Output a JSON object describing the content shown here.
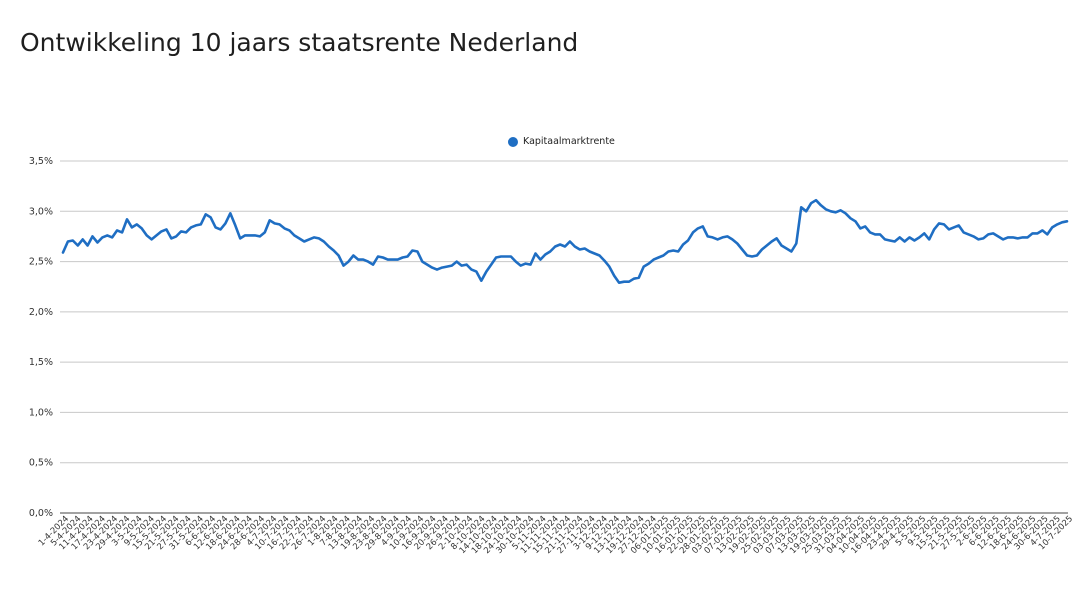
{
  "chart_data": {
    "type": "line",
    "title": "Ontwikkeling 10 jaars staatsrente Nederland",
    "xlabel": "",
    "ylabel": "",
    "ylim": [
      0,
      3.5
    ],
    "yticks": [
      "0,0%",
      "0,5%",
      "1,0%",
      "1,5%",
      "2,0%",
      "2,5%",
      "3,0%",
      "3,5%"
    ],
    "grid": true,
    "legend_position": "top-center",
    "line_color": "#1f6ec3",
    "x_tick_labels": [
      "1-4-2024",
      "5-4-2024",
      "11-4-2024",
      "17-4-2024",
      "23-4-2024",
      "29-4-2024",
      "3-5-2024",
      "9-5-2024",
      "15-5-2024",
      "21-5-2024",
      "27-5-2024",
      "31-5-2024",
      "6-6-2024",
      "12-6-2024",
      "18-6-2024",
      "24-6-2024",
      "28-6-2024",
      "4-7-2024",
      "10-7-2024",
      "16-7-2024",
      "22-7-2024",
      "26-7-2024",
      "1-8-2024",
      "7-8-2024",
      "13-8-2024",
      "19-8-2024",
      "23-8-2024",
      "29-8-2024",
      "4-9-2024",
      "10-9-2024",
      "16-9-2024",
      "20-9-2024",
      "26-9-2024",
      "2-10-2024",
      "8-10-2024",
      "14-10-2024",
      "18-10-2024",
      "24-10-2024",
      "30-10-2024",
      "5-11-2024",
      "11-11-2024",
      "15-11-2024",
      "21-11-2024",
      "27-11-2024",
      "3-12-2024",
      "9-12-2024",
      "13-12-2024",
      "19-12-2024",
      "27-12-2024",
      "06-01-2025",
      "10-01-2025",
      "16-01-2025",
      "22-01-2025",
      "28-01-2025",
      "03-02-2025",
      "07-02-2025",
      "13-02-2025",
      "19-02-2025",
      "25-02-2025",
      "03-03-2025",
      "07-03-2025",
      "13-03-2025",
      "19-03-2025",
      "25-03-2025",
      "31-03-2025",
      "04-04-2025",
      "10-04-2025",
      "16-04-2025",
      "23-4-2025",
      "29-4-2025",
      "5-5-2025",
      "9-5-2025",
      "15-5-2025",
      "21-5-2025",
      "27-5-2025",
      "2-6-2025",
      "6-6-2025",
      "12-6-2025",
      "18-6-2025",
      "24-6-2025",
      "30-6-2025",
      "4-7-2025",
      "10-7-2025"
    ],
    "series": [
      {
        "name": "Kapitaalmarktrente",
        "points": [
          [
            0,
            2.59
          ],
          [
            1,
            2.7
          ],
          [
            2,
            2.71
          ],
          [
            3,
            2.66
          ],
          [
            4,
            2.72
          ],
          [
            5,
            2.66
          ],
          [
            6,
            2.75
          ],
          [
            7,
            2.69
          ],
          [
            8,
            2.74
          ],
          [
            9,
            2.76
          ],
          [
            10,
            2.74
          ],
          [
            11,
            2.81
          ],
          [
            12,
            2.79
          ],
          [
            13,
            2.92
          ],
          [
            14,
            2.84
          ],
          [
            15,
            2.87
          ],
          [
            16,
            2.83
          ],
          [
            17,
            2.76
          ],
          [
            18,
            2.72
          ],
          [
            19,
            2.76
          ],
          [
            20,
            2.8
          ],
          [
            21,
            2.82
          ],
          [
            22,
            2.73
          ],
          [
            23,
            2.75
          ],
          [
            24,
            2.8
          ],
          [
            25,
            2.79
          ],
          [
            26,
            2.84
          ],
          [
            27,
            2.86
          ],
          [
            28,
            2.87
          ],
          [
            29,
            2.97
          ],
          [
            30,
            2.94
          ],
          [
            31,
            2.84
          ],
          [
            32,
            2.82
          ],
          [
            33,
            2.88
          ],
          [
            34,
            2.98
          ],
          [
            35,
            2.86
          ],
          [
            36,
            2.73
          ],
          [
            37,
            2.76
          ],
          [
            38,
            2.76
          ],
          [
            39,
            2.76
          ],
          [
            40,
            2.75
          ],
          [
            41,
            2.79
          ],
          [
            42,
            2.91
          ],
          [
            43,
            2.88
          ],
          [
            44,
            2.87
          ],
          [
            45,
            2.83
          ],
          [
            46,
            2.81
          ],
          [
            47,
            2.76
          ],
          [
            48,
            2.73
          ],
          [
            49,
            2.7
          ],
          [
            50,
            2.72
          ],
          [
            51,
            2.74
          ],
          [
            52,
            2.73
          ],
          [
            53,
            2.7
          ],
          [
            54,
            2.65
          ],
          [
            55,
            2.61
          ],
          [
            56,
            2.56
          ],
          [
            57,
            2.46
          ],
          [
            58,
            2.5
          ],
          [
            59,
            2.56
          ],
          [
            60,
            2.52
          ],
          [
            61,
            2.52
          ],
          [
            62,
            2.5
          ],
          [
            63,
            2.47
          ],
          [
            64,
            2.55
          ],
          [
            65,
            2.54
          ],
          [
            66,
            2.52
          ],
          [
            67,
            2.52
          ],
          [
            68,
            2.52
          ],
          [
            69,
            2.54
          ],
          [
            70,
            2.55
          ],
          [
            71,
            2.61
          ],
          [
            72,
            2.6
          ],
          [
            73,
            2.5
          ],
          [
            74,
            2.47
          ],
          [
            75,
            2.44
          ],
          [
            76,
            2.42
          ],
          [
            77,
            2.44
          ],
          [
            78,
            2.45
          ],
          [
            79,
            2.46
          ],
          [
            80,
            2.5
          ],
          [
            81,
            2.46
          ],
          [
            82,
            2.47
          ],
          [
            83,
            2.42
          ],
          [
            84,
            2.4
          ],
          [
            85,
            2.31
          ],
          [
            86,
            2.4
          ],
          [
            87,
            2.47
          ],
          [
            88,
            2.54
          ],
          [
            89,
            2.55
          ],
          [
            90,
            2.55
          ],
          [
            91,
            2.55
          ],
          [
            92,
            2.5
          ],
          [
            93,
            2.46
          ],
          [
            94,
            2.48
          ],
          [
            95,
            2.47
          ],
          [
            96,
            2.58
          ],
          [
            97,
            2.52
          ],
          [
            98,
            2.57
          ],
          [
            99,
            2.6
          ],
          [
            100,
            2.65
          ],
          [
            101,
            2.67
          ],
          [
            102,
            2.65
          ],
          [
            103,
            2.7
          ],
          [
            104,
            2.65
          ],
          [
            105,
            2.62
          ],
          [
            106,
            2.63
          ],
          [
            107,
            2.6
          ],
          [
            108,
            2.58
          ],
          [
            109,
            2.56
          ],
          [
            110,
            2.51
          ],
          [
            111,
            2.45
          ],
          [
            112,
            2.36
          ],
          [
            113,
            2.29
          ],
          [
            114,
            2.3
          ],
          [
            115,
            2.3
          ],
          [
            116,
            2.33
          ],
          [
            117,
            2.34
          ],
          [
            118,
            2.45
          ],
          [
            119,
            2.48
          ],
          [
            120,
            2.52
          ],
          [
            121,
            2.54
          ],
          [
            122,
            2.56
          ],
          [
            123,
            2.6
          ],
          [
            124,
            2.61
          ],
          [
            125,
            2.6
          ],
          [
            126,
            2.67
          ],
          [
            127,
            2.71
          ],
          [
            128,
            2.79
          ],
          [
            129,
            2.83
          ],
          [
            130,
            2.85
          ],
          [
            131,
            2.75
          ],
          [
            132,
            2.74
          ],
          [
            133,
            2.72
          ],
          [
            134,
            2.74
          ],
          [
            135,
            2.75
          ],
          [
            136,
            2.72
          ],
          [
            137,
            2.68
          ],
          [
            138,
            2.62
          ],
          [
            139,
            2.56
          ],
          [
            140,
            2.55
          ],
          [
            141,
            2.56
          ],
          [
            142,
            2.62
          ],
          [
            143,
            2.66
          ],
          [
            144,
            2.7
          ],
          [
            145,
            2.73
          ],
          [
            146,
            2.66
          ],
          [
            147,
            2.63
          ],
          [
            148,
            2.6
          ],
          [
            149,
            2.68
          ],
          [
            150,
            3.04
          ],
          [
            151,
            3.0
          ],
          [
            152,
            3.08
          ],
          [
            153,
            3.11
          ],
          [
            154,
            3.06
          ],
          [
            155,
            3.02
          ],
          [
            156,
            3.0
          ],
          [
            157,
            2.99
          ],
          [
            158,
            3.01
          ],
          [
            159,
            2.98
          ],
          [
            160,
            2.93
          ],
          [
            161,
            2.9
          ],
          [
            162,
            2.83
          ],
          [
            163,
            2.85
          ],
          [
            164,
            2.79
          ],
          [
            165,
            2.77
          ],
          [
            166,
            2.77
          ],
          [
            167,
            2.72
          ],
          [
            168,
            2.71
          ],
          [
            169,
            2.7
          ],
          [
            170,
            2.74
          ],
          [
            171,
            2.7
          ],
          [
            172,
            2.74
          ],
          [
            173,
            2.71
          ],
          [
            174,
            2.74
          ],
          [
            175,
            2.78
          ],
          [
            176,
            2.72
          ],
          [
            177,
            2.82
          ],
          [
            178,
            2.88
          ],
          [
            179,
            2.87
          ],
          [
            180,
            2.82
          ],
          [
            181,
            2.84
          ],
          [
            182,
            2.86
          ],
          [
            183,
            2.79
          ],
          [
            184,
            2.77
          ],
          [
            185,
            2.75
          ],
          [
            186,
            2.72
          ],
          [
            187,
            2.73
          ],
          [
            188,
            2.77
          ],
          [
            189,
            2.78
          ],
          [
            190,
            2.75
          ],
          [
            191,
            2.72
          ],
          [
            192,
            2.74
          ],
          [
            193,
            2.74
          ],
          [
            194,
            2.73
          ],
          [
            195,
            2.74
          ],
          [
            196,
            2.74
          ],
          [
            197,
            2.78
          ],
          [
            198,
            2.78
          ],
          [
            199,
            2.81
          ],
          [
            200,
            2.77
          ],
          [
            201,
            2.84
          ],
          [
            202,
            2.87
          ],
          [
            203,
            2.89
          ],
          [
            204,
            2.9
          ]
        ]
      }
    ]
  }
}
